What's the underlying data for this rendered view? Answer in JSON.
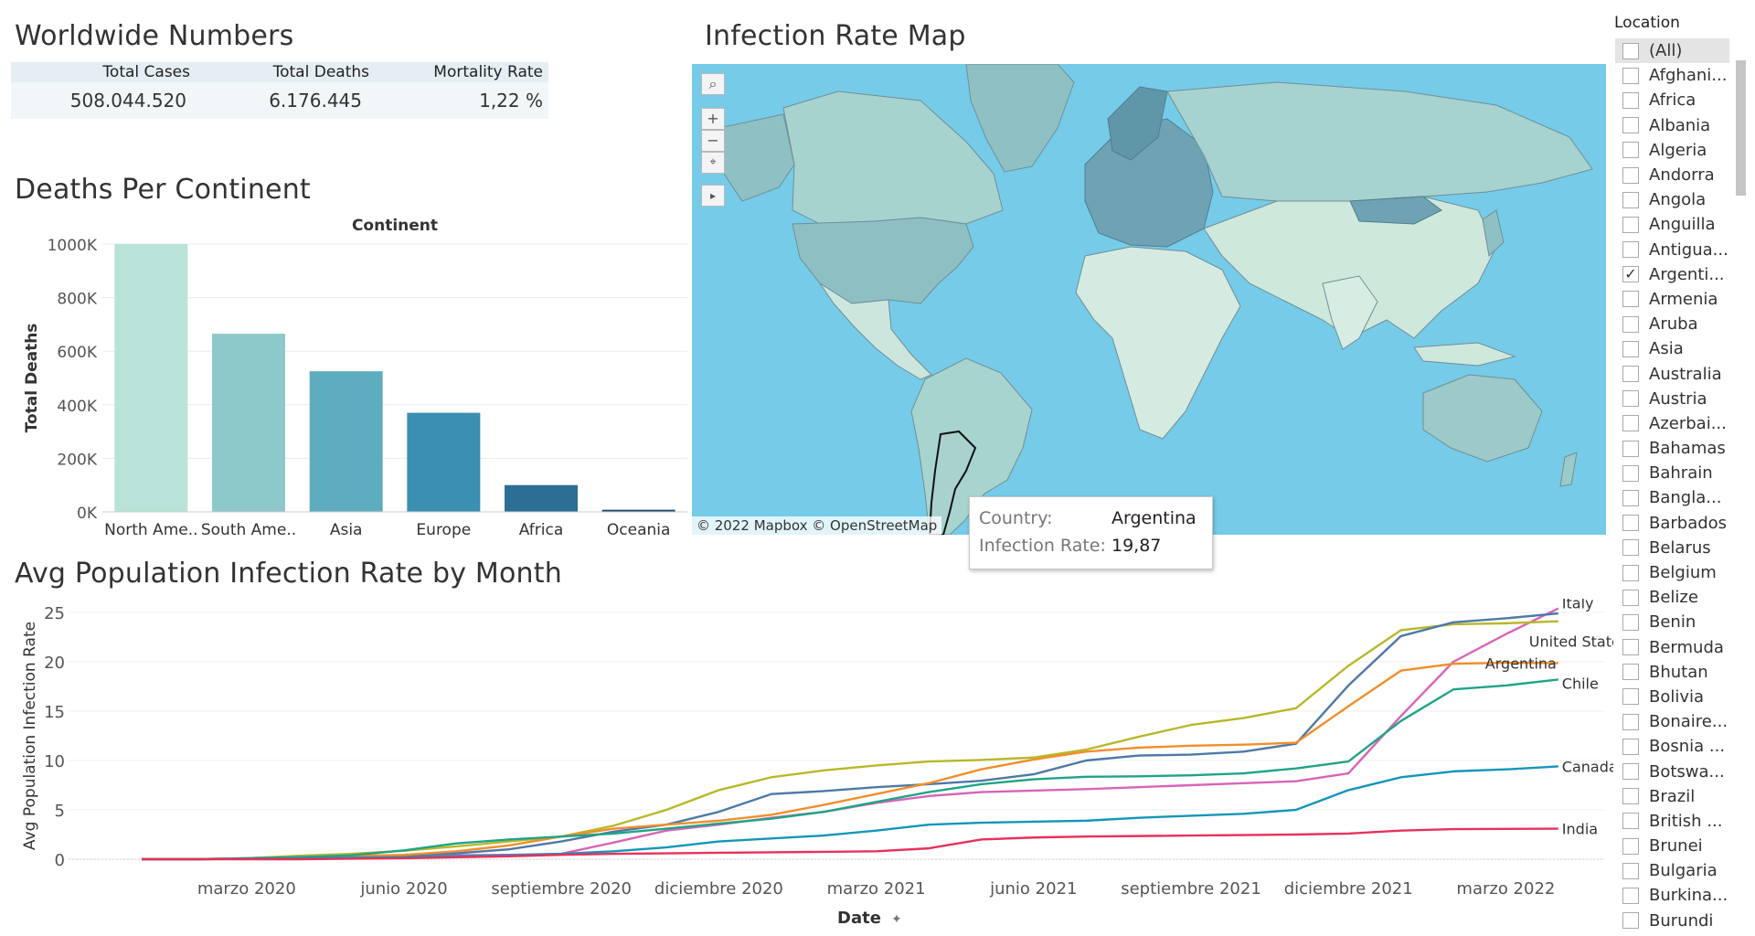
{
  "worldwide": {
    "title": "Worldwide Numbers",
    "headers": [
      "Total Cases",
      "Total Deaths",
      "Mortality Rate"
    ],
    "values": [
      "508.044.520",
      "6.176.445",
      "1,22 %"
    ]
  },
  "deaths_chart_title": "Deaths Per Continent",
  "map": {
    "title": "Infection Rate Map",
    "attribution": "© 2022 Mapbox © OpenStreetMap",
    "controls": {
      "search": "search-icon",
      "zoom_in": "+",
      "zoom_out": "−",
      "select": "lasso-icon",
      "expand": "▸"
    },
    "tooltip": {
      "country_label": "Country:",
      "country_value": "Argentina",
      "rate_label": "Infection Rate:",
      "rate_value": "19,87"
    },
    "colors": {
      "ocean": "#76cbe8",
      "land_light": "#cfe8dc",
      "land_mid": "#a6d2cf",
      "land_dark": "#5f96a8"
    }
  },
  "line_chart_title": "Avg Population Infection Rate by Month",
  "location_filter": {
    "title": "Location",
    "items": [
      {
        "label": "(All)",
        "checked": false
      },
      {
        "label": "Afghani...",
        "checked": false
      },
      {
        "label": "Africa",
        "checked": false
      },
      {
        "label": "Albania",
        "checked": false
      },
      {
        "label": "Algeria",
        "checked": false
      },
      {
        "label": "Andorra",
        "checked": false
      },
      {
        "label": "Angola",
        "checked": false
      },
      {
        "label": "Anguilla",
        "checked": false
      },
      {
        "label": "Antigua...",
        "checked": false
      },
      {
        "label": "Argenti...",
        "checked": true
      },
      {
        "label": "Armenia",
        "checked": false
      },
      {
        "label": "Aruba",
        "checked": false
      },
      {
        "label": "Asia",
        "checked": false
      },
      {
        "label": "Australia",
        "checked": false
      },
      {
        "label": "Austria",
        "checked": false
      },
      {
        "label": "Azerbai...",
        "checked": false
      },
      {
        "label": "Bahamas",
        "checked": false
      },
      {
        "label": "Bahrain",
        "checked": false
      },
      {
        "label": "Bangla...",
        "checked": false
      },
      {
        "label": "Barbados",
        "checked": false
      },
      {
        "label": "Belarus",
        "checked": false
      },
      {
        "label": "Belgium",
        "checked": false
      },
      {
        "label": "Belize",
        "checked": false
      },
      {
        "label": "Benin",
        "checked": false
      },
      {
        "label": "Bermuda",
        "checked": false
      },
      {
        "label": "Bhutan",
        "checked": false
      },
      {
        "label": "Bolivia",
        "checked": false
      },
      {
        "label": "Bonaire...",
        "checked": false
      },
      {
        "label": "Bosnia ...",
        "checked": false
      },
      {
        "label": "Botswa...",
        "checked": false
      },
      {
        "label": "Brazil",
        "checked": false
      },
      {
        "label": "British ...",
        "checked": false
      },
      {
        "label": "Brunei",
        "checked": false
      },
      {
        "label": "Bulgaria",
        "checked": false
      },
      {
        "label": "Burkina...",
        "checked": false
      },
      {
        "label": "Burundi",
        "checked": false
      }
    ]
  },
  "chart_data": [
    {
      "type": "bar",
      "title": "Continent",
      "ylabel": "Total Deaths",
      "categories": [
        "North Ame..",
        "South Ame..",
        "Asia",
        "Europe",
        "Africa",
        "Oceania"
      ],
      "values": [
        1000000,
        665000,
        525000,
        370000,
        100000,
        8000
      ],
      "colors": [
        "#b9e3d8",
        "#8dc8ca",
        "#5eadbf",
        "#3b8fb0",
        "#2d6e94",
        "#1f4d73"
      ],
      "ylim": [
        0,
        1000000
      ],
      "yticks": [
        {
          "v": 0,
          "label": "0K"
        },
        {
          "v": 200000,
          "label": "200K"
        },
        {
          "v": 400000,
          "label": "400K"
        },
        {
          "v": 600000,
          "label": "600K"
        },
        {
          "v": 800000,
          "label": "800K"
        },
        {
          "v": 1000000,
          "label": "1000K"
        }
      ]
    },
    {
      "type": "line",
      "xlabel": "Date",
      "ylabel": "Avg Population Infection Rate",
      "ylim": [
        0,
        25
      ],
      "yticks": [
        0,
        5,
        10,
        15,
        20,
        25
      ],
      "x": [
        "2020-01",
        "2020-02",
        "2020-03",
        "2020-04",
        "2020-05",
        "2020-06",
        "2020-07",
        "2020-08",
        "2020-09",
        "2020-10",
        "2020-11",
        "2020-12",
        "2021-01",
        "2021-02",
        "2021-03",
        "2021-04",
        "2021-05",
        "2021-06",
        "2021-07",
        "2021-08",
        "2021-09",
        "2021-10",
        "2021-11",
        "2021-12",
        "2022-01",
        "2022-02",
        "2022-03",
        "2022-04"
      ],
      "xticks": [
        {
          "at": "2020-03",
          "label": "marzo 2020"
        },
        {
          "at": "2020-06",
          "label": "junio 2020"
        },
        {
          "at": "2020-09",
          "label": "septiembre 2020"
        },
        {
          "at": "2020-12",
          "label": "diciembre 2020"
        },
        {
          "at": "2021-03",
          "label": "marzo 2021"
        },
        {
          "at": "2021-06",
          "label": "junio 2021"
        },
        {
          "at": "2021-09",
          "label": "septiembre 2021"
        },
        {
          "at": "2021-12",
          "label": "diciembre 2021"
        },
        {
          "at": "2022-03",
          "label": "marzo 2022"
        }
      ],
      "series": [
        {
          "name": "Italy",
          "color": "#d765b8",
          "values": [
            0,
            0,
            0.1,
            0.3,
            0.35,
            0.4,
            0.4,
            0.45,
            0.55,
            1.7,
            2.9,
            3.5,
            4.2,
            4.8,
            5.7,
            6.4,
            6.8,
            6.95,
            7.1,
            7.3,
            7.5,
            7.7,
            7.9,
            8.7,
            14.5,
            20.0,
            22.8,
            25.4
          ]
        },
        {
          "name": "United States",
          "color": "#b8b82b",
          "values": [
            0,
            0,
            0.1,
            0.35,
            0.55,
            0.85,
            1.3,
            1.8,
            2.3,
            3.4,
            5.0,
            7.0,
            8.3,
            9.0,
            9.5,
            9.9,
            10.05,
            10.3,
            11.1,
            12.4,
            13.6,
            14.3,
            15.3,
            19.6,
            23.2,
            23.8,
            23.9,
            24.1
          ]
        },
        {
          "name": "",
          "color": "#4e79a7",
          "values": [
            0,
            0,
            0.05,
            0.2,
            0.3,
            0.4,
            0.6,
            1.0,
            1.8,
            2.8,
            3.5,
            4.8,
            6.6,
            6.9,
            7.3,
            7.6,
            7.95,
            8.6,
            10.0,
            10.5,
            10.6,
            10.9,
            11.7,
            17.6,
            22.6,
            24.0,
            24.4,
            24.9
          ]
        },
        {
          "name": "Argentina",
          "color": "#f28e2b",
          "values": [
            0,
            0,
            0.05,
            0.15,
            0.3,
            0.45,
            0.8,
            1.4,
            2.3,
            3.1,
            3.5,
            3.9,
            4.5,
            5.5,
            6.6,
            7.7,
            9.1,
            10.1,
            10.9,
            11.3,
            11.5,
            11.6,
            11.8,
            15.5,
            19.1,
            19.8,
            19.9,
            19.87
          ]
        },
        {
          "name": "Chile",
          "color": "#20a486",
          "values": [
            0,
            0,
            0.1,
            0.2,
            0.4,
            0.9,
            1.6,
            2.0,
            2.3,
            2.6,
            3.1,
            3.6,
            4.1,
            4.8,
            5.8,
            6.8,
            7.6,
            8.1,
            8.35,
            8.4,
            8.5,
            8.7,
            9.2,
            9.9,
            14.0,
            17.2,
            17.6,
            18.2
          ]
        },
        {
          "name": "Canada",
          "color": "#1596b8",
          "values": [
            0,
            0,
            0.05,
            0.1,
            0.15,
            0.2,
            0.3,
            0.4,
            0.55,
            0.8,
            1.2,
            1.8,
            2.1,
            2.4,
            2.9,
            3.5,
            3.7,
            3.8,
            3.9,
            4.2,
            4.4,
            4.6,
            5.0,
            7.0,
            8.3,
            8.9,
            9.1,
            9.4
          ]
        },
        {
          "name": "India",
          "color": "#e8315a",
          "values": [
            0,
            0,
            0,
            0,
            0.05,
            0.1,
            0.2,
            0.3,
            0.45,
            0.55,
            0.6,
            0.65,
            0.7,
            0.75,
            0.8,
            1.1,
            2.0,
            2.2,
            2.3,
            2.35,
            2.4,
            2.45,
            2.5,
            2.6,
            2.9,
            3.05,
            3.07,
            3.1
          ]
        }
      ]
    }
  ]
}
